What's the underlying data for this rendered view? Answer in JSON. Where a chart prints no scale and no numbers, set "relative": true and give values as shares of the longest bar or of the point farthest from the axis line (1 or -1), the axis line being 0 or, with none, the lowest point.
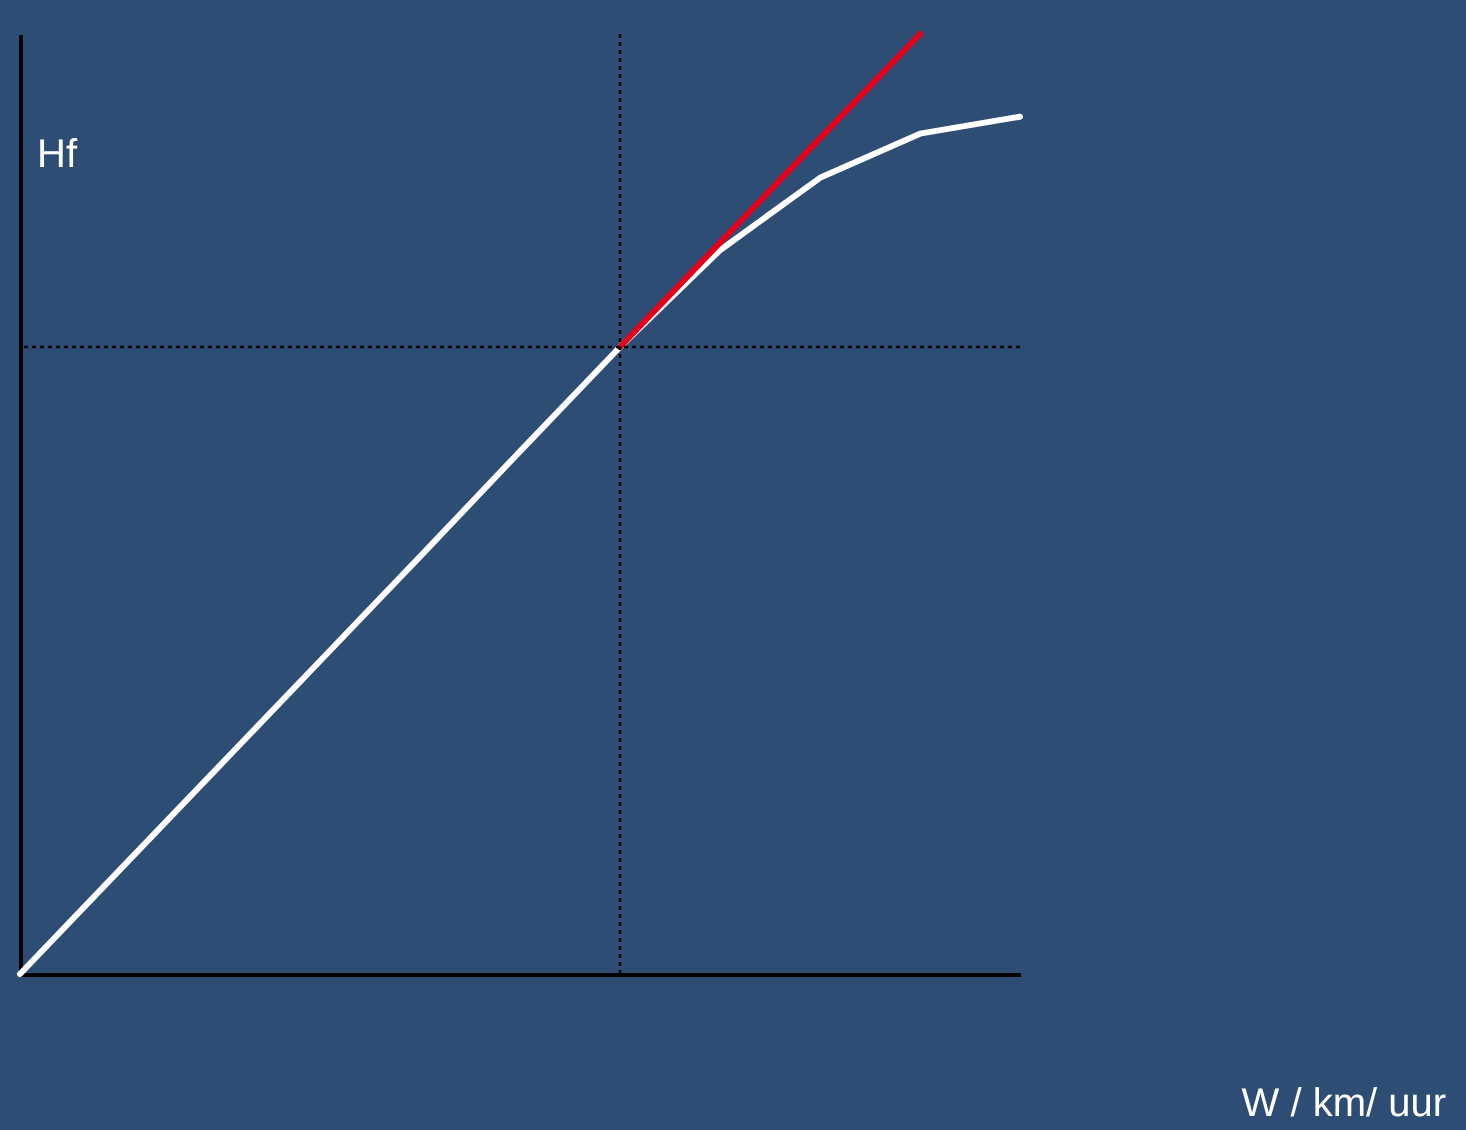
{
  "chart_data": {
    "type": "line",
    "relative": true,
    "annotations": [
      "W / km/ uur"
    ],
    "ylabel": "Hf",
    "legend": false,
    "marker": "none",
    "line_style": "solid",
    "categories": [
      null,
      null,
      null,
      null,
      null,
      null,
      null,
      null,
      null,
      null,
      null
    ],
    "series": [
      {
        "color": "#ffffff",
        "values": [
          0,
          0.111,
          0.222,
          0.333,
          0.444,
          0.556,
          0.667,
          0.77,
          0.847,
          0.894,
          0.912
        ]
      },
      {
        "color": "#e3001b",
        "values": [
          null,
          null,
          null,
          null,
          null,
          null,
          0.667,
          0.778,
          0.889,
          1.0,
          null
        ]
      }
    ],
    "ref_lines": [
      {
        "axis": "y",
        "value": 0.667,
        "color": "#000000",
        "line_style": "dotted"
      }
    ]
  }
}
